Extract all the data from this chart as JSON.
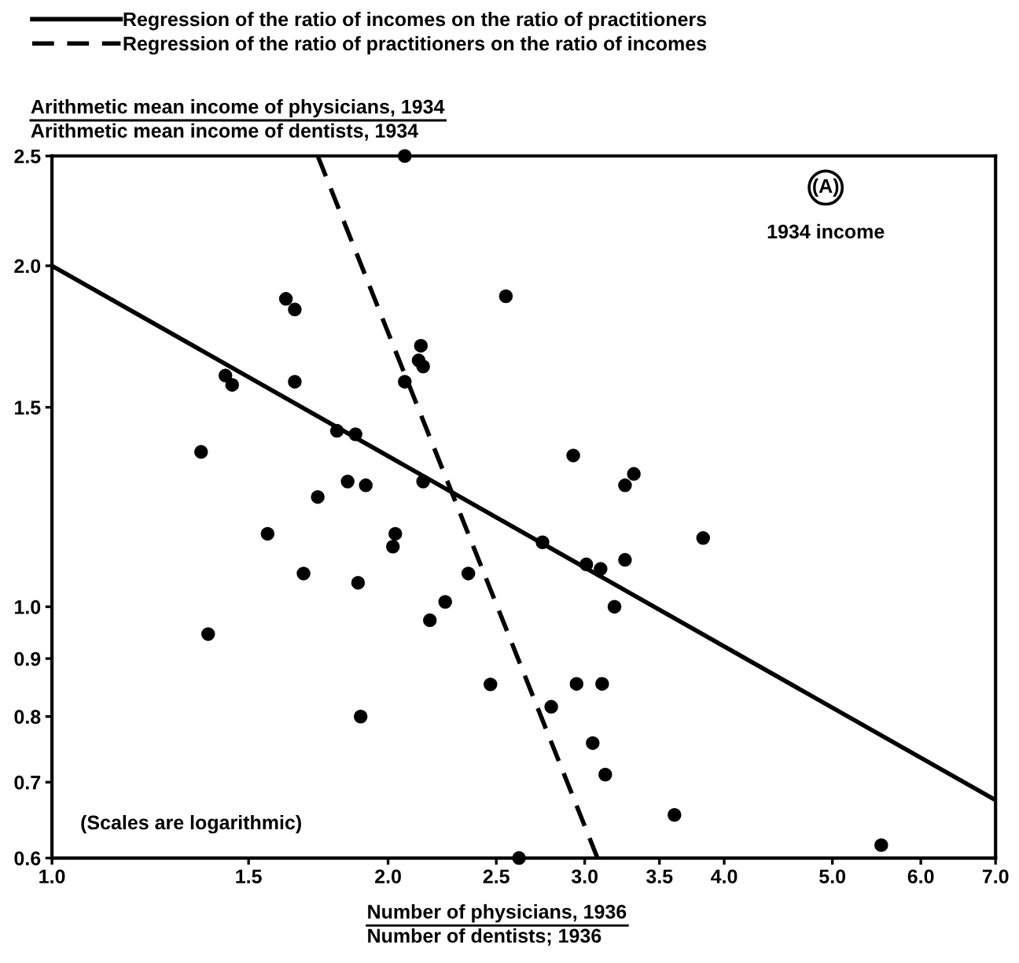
{
  "chart_data": {
    "type": "scatter",
    "xlabel": "Number of physicians, 1936\nNumber of dentists; 1936",
    "ylabel": "Arithmetic mean income of physicians, 1934\nArithmetic mean income of dentists, 1934",
    "log": "xy",
    "xlim": [
      1.0,
      7.0
    ],
    "ylim": [
      0.6,
      2.5
    ],
    "xticks": [
      {
        "value": 1,
        "label": "1.0"
      },
      1.5,
      {
        "value": 2,
        "label": "2.0"
      },
      2.5,
      {
        "value": 3,
        "label": "3.0"
      },
      3.5,
      {
        "value": 4,
        "label": "4.0"
      },
      {
        "value": 5,
        "label": "5.0"
      },
      {
        "value": 6,
        "label": "6.0"
      },
      {
        "value": 7,
        "label": "7.0"
      }
    ],
    "yticks": [
      0.6,
      0.7,
      0.8,
      0.9,
      {
        "value": 1,
        "label": "1.0"
      },
      1.5,
      {
        "value": 2,
        "label": "2.0"
      },
      2.5
    ],
    "legend": "top left",
    "grid": false,
    "annotations": [
      "(A)",
      "1934 income",
      "(Scales are logarithmic)"
    ],
    "series": [
      {
        "color": "#000000",
        "marker": "circle",
        "x": [
          2.07,
          1.62,
          1.65,
          1.43,
          1.45,
          1.65,
          1.36,
          1.8,
          1.87,
          1.84,
          1.91,
          1.73,
          1.56,
          2.03,
          2.02,
          2.15,
          2.14,
          2.13,
          2.15,
          2.07,
          2.55,
          2.36,
          1.68,
          1.88,
          1.38,
          2.18,
          2.25,
          2.47,
          1.89,
          2.93,
          3.32,
          3.26,
          3.83,
          2.75,
          3.01,
          3.1,
          3.26,
          3.19,
          2.95,
          3.11,
          2.8,
          3.05,
          3.13,
          3.61,
          5.53,
          2.62
        ],
        "values": [
          2.5,
          1.87,
          1.83,
          1.6,
          1.57,
          1.58,
          1.37,
          1.43,
          1.42,
          1.29,
          1.28,
          1.25,
          1.16,
          1.16,
          1.13,
          1.29,
          1.7,
          1.65,
          1.63,
          1.58,
          1.88,
          1.07,
          1.07,
          1.05,
          0.946,
          0.973,
          1.01,
          0.854,
          0.8,
          1.36,
          1.31,
          1.28,
          1.15,
          1.14,
          1.09,
          1.08,
          1.1,
          1.0,
          0.855,
          0.855,
          0.816,
          0.758,
          0.711,
          0.655,
          0.616,
          0.6
        ]
      },
      {
        "type": "line",
        "name": "Regression of the ratio of incomes on the ratio of practitioners",
        "color": "#000000",
        "line_style": "solid",
        "x": [
          1.0,
          7.0
        ],
        "values": [
          2.0,
          0.675
        ]
      },
      {
        "type": "line",
        "name": "Regression of the ratio of practitioners on the ratio of incomes",
        "color": "#000000",
        "line_style": "dashed",
        "x": [
          1.73,
          3.08
        ],
        "values": [
          2.5,
          0.6
        ]
      }
    ]
  }
}
